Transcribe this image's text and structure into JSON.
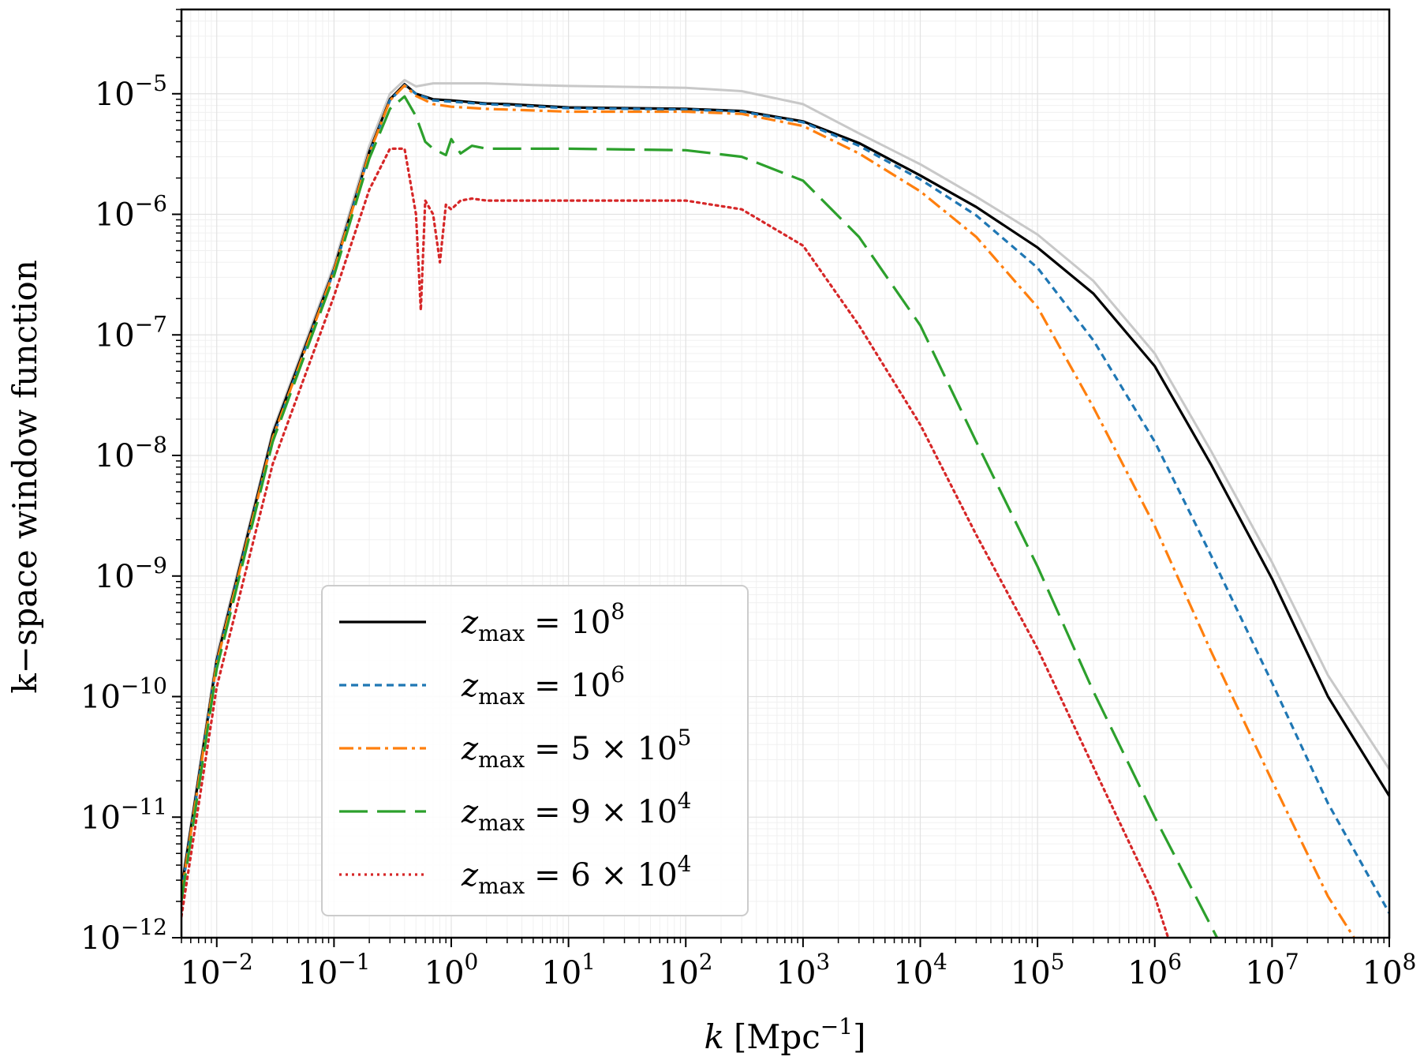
{
  "chart_data": {
    "type": "line",
    "xlabel": "k [Mpc^-1]",
    "xlabel_parts": {
      "var": "k",
      "unit": "Mpc",
      "exp": "−1"
    },
    "ylabel": "k−space window function",
    "xscale": "log",
    "yscale": "log",
    "xlim": [
      0.005,
      100000000
    ],
    "ylim": [
      1e-12,
      5e-05
    ],
    "grid": true,
    "legend_position": "lower-left",
    "x_ticks": [
      {
        "value": 0.01,
        "base": "10",
        "exp": "−2"
      },
      {
        "value": 0.1,
        "base": "10",
        "exp": "−1"
      },
      {
        "value": 1,
        "base": "10",
        "exp": "0"
      },
      {
        "value": 10,
        "base": "10",
        "exp": "1"
      },
      {
        "value": 100,
        "base": "10",
        "exp": "2"
      },
      {
        "value": 1000,
        "base": "10",
        "exp": "3"
      },
      {
        "value": 10000,
        "base": "10",
        "exp": "4"
      },
      {
        "value": 100000,
        "base": "10",
        "exp": "5"
      },
      {
        "value": 1000000,
        "base": "10",
        "exp": "6"
      },
      {
        "value": 10000000,
        "base": "10",
        "exp": "7"
      },
      {
        "value": 100000000,
        "base": "10",
        "exp": "8"
      }
    ],
    "y_ticks": [
      {
        "value": 1e-05,
        "base": "10",
        "exp": "−5"
      },
      {
        "value": 1e-06,
        "base": "10",
        "exp": "−6"
      },
      {
        "value": 1e-07,
        "base": "10",
        "exp": "−7"
      },
      {
        "value": 1e-08,
        "base": "10",
        "exp": "−8"
      },
      {
        "value": 1e-09,
        "base": "10",
        "exp": "−9"
      },
      {
        "value": 1e-10,
        "base": "10",
        "exp": "−10"
      },
      {
        "value": 1e-11,
        "base": "10",
        "exp": "−11"
      },
      {
        "value": 1e-12,
        "base": "10",
        "exp": "−12"
      }
    ],
    "series": [
      {
        "name": "",
        "color": "#c8c8c8",
        "style": "solid",
        "x": [
          0.005,
          0.01,
          0.03,
          0.1,
          0.2,
          0.3,
          0.4,
          0.5,
          0.7,
          1,
          2,
          5,
          10,
          100,
          300,
          1000,
          3000,
          10000,
          30000,
          100000,
          300000,
          1000000,
          3000000,
          10000000,
          30000000,
          100000000
        ],
        "y": [
          2.7e-12,
          2.2e-10,
          1.6e-08,
          3.8e-07,
          3.7e-06,
          1e-05,
          1.3e-05,
          1.15e-05,
          1.22e-05,
          1.22e-05,
          1.22e-05,
          1.18e-05,
          1.16e-05,
          1.12e-05,
          1.05e-05,
          8.2e-06,
          4.7e-06,
          2.6e-06,
          1.4e-06,
          6.8e-07,
          2.8e-07,
          7e-08,
          1.1e-08,
          1.3e-09,
          1.5e-10,
          2.5e-11
        ]
      },
      {
        "name": "z_max = 10^8",
        "label_base": "10",
        "label_exp": "8",
        "color": "#000000",
        "style": "solid",
        "x": [
          0.005,
          0.01,
          0.03,
          0.1,
          0.2,
          0.3,
          0.4,
          0.5,
          0.7,
          1,
          1.5,
          2,
          3,
          10,
          100,
          300,
          1000,
          3000,
          10000,
          30000,
          100000,
          300000,
          1000000,
          3000000,
          10000000,
          30000000,
          100000000
        ],
        "y": [
          2.5e-12,
          2e-10,
          1.5e-08,
          3.5e-07,
          3.3e-06,
          9e-06,
          1.2e-05,
          1e-05,
          9e-06,
          8.8e-06,
          8.5e-06,
          8.3e-06,
          8.2e-06,
          7.7e-06,
          7.5e-06,
          7.2e-06,
          5.9e-06,
          3.9e-06,
          2.1e-06,
          1.15e-06,
          5.3e-07,
          2.2e-07,
          5.5e-08,
          8.5e-09,
          9.5e-10,
          1e-10,
          1.5e-11
        ]
      },
      {
        "name": "z_max = 10^6",
        "label_base": "10",
        "label_exp": "6",
        "color": "#1f77b4",
        "style": "dashed",
        "x": [
          0.005,
          0.01,
          0.03,
          0.1,
          0.2,
          0.3,
          0.4,
          0.5,
          0.7,
          1,
          2,
          10,
          100,
          300,
          1000,
          3000,
          10000,
          30000,
          100000,
          300000,
          1000000,
          3000000,
          10000000,
          30000000,
          100000000
        ],
        "y": [
          2.3e-12,
          1.9e-10,
          1.4e-08,
          3.4e-07,
          3.2e-06,
          8.8e-06,
          1.18e-05,
          1e-05,
          8.8e-06,
          8.6e-06,
          8.2e-06,
          7.6e-06,
          7.4e-06,
          7.1e-06,
          5.8e-06,
          3.7e-06,
          1.95e-06,
          9.8e-07,
          3.6e-07,
          9e-08,
          1.3e-08,
          1.5e-09,
          1.3e-10,
          1.3e-11,
          1.6e-12
        ]
      },
      {
        "name": "z_max = 5 × 10^5",
        "label_base": "5 × 10",
        "label_exp": "5",
        "color": "#ff7f0e",
        "style": "dashdot",
        "x": [
          0.005,
          0.01,
          0.03,
          0.1,
          0.2,
          0.3,
          0.4,
          0.5,
          0.7,
          1,
          2,
          10,
          100,
          300,
          1000,
          3000,
          10000,
          30000,
          100000,
          300000,
          1000000,
          3000000,
          10000000,
          30000000,
          50000000
        ],
        "y": [
          2.3e-12,
          1.9e-10,
          1.4e-08,
          3.4e-07,
          3.2e-06,
          8.8e-06,
          1.17e-05,
          9.6e-06,
          8.2e-06,
          7.8e-06,
          7.5e-06,
          7.1e-06,
          7.1e-06,
          6.8e-06,
          5.4e-06,
          3.2e-06,
          1.55e-06,
          6.5e-07,
          1.7e-07,
          2.5e-08,
          2.6e-09,
          2.4e-10,
          2e-11,
          2.2e-12,
          1e-12
        ]
      },
      {
        "name": "z_max = 9 × 10^4",
        "label_base": "9 × 10",
        "label_exp": "4",
        "color": "#2ca02c",
        "style": "longdash",
        "x": [
          0.005,
          0.01,
          0.03,
          0.1,
          0.2,
          0.3,
          0.4,
          0.5,
          0.6,
          0.7,
          0.9,
          1,
          1.2,
          1.5,
          2,
          3,
          10,
          100,
          300,
          1000,
          3000,
          10000,
          30000,
          100000,
          300000,
          1000000,
          3400000
        ],
        "y": [
          2e-12,
          1.7e-10,
          1.3e-08,
          3.1e-07,
          2.9e-06,
          7.5e-06,
          9.5e-06,
          6.5e-06,
          4e-06,
          3.5e-06,
          3.1e-06,
          4.2e-06,
          3.2e-06,
          3.7e-06,
          3.5e-06,
          3.5e-06,
          3.5e-06,
          3.4e-06,
          3e-06,
          1.9e-06,
          6.5e-07,
          1.2e-07,
          1.3e-08,
          1.2e-09,
          1.1e-10,
          1e-11,
          1e-12
        ]
      },
      {
        "name": "z_max = 6 × 10^4",
        "label_base": "6 × 10",
        "label_exp": "4",
        "color": "#d62728",
        "style": "dotted",
        "x": [
          0.005,
          0.01,
          0.03,
          0.1,
          0.2,
          0.3,
          0.4,
          0.5,
          0.55,
          0.6,
          0.7,
          0.8,
          0.9,
          1,
          1.2,
          1.5,
          2,
          3,
          10,
          100,
          300,
          1000,
          3000,
          10000,
          30000,
          100000,
          300000,
          1000000,
          1300000
        ],
        "y": [
          1.5e-12,
          1.2e-10,
          8.5e-09,
          2.1e-07,
          1.6e-06,
          3.5e-06,
          3.5e-06,
          1e-06,
          1.6e-07,
          1.3e-06,
          1e-06,
          4e-07,
          1.2e-06,
          1.1e-06,
          1.3e-06,
          1.35e-06,
          1.3e-06,
          1.3e-06,
          1.3e-06,
          1.3e-06,
          1.1e-06,
          5.5e-07,
          1.2e-07,
          1.8e-08,
          2.2e-09,
          2.5e-10,
          2.6e-11,
          2.2e-12,
          1e-12
        ]
      }
    ]
  }
}
